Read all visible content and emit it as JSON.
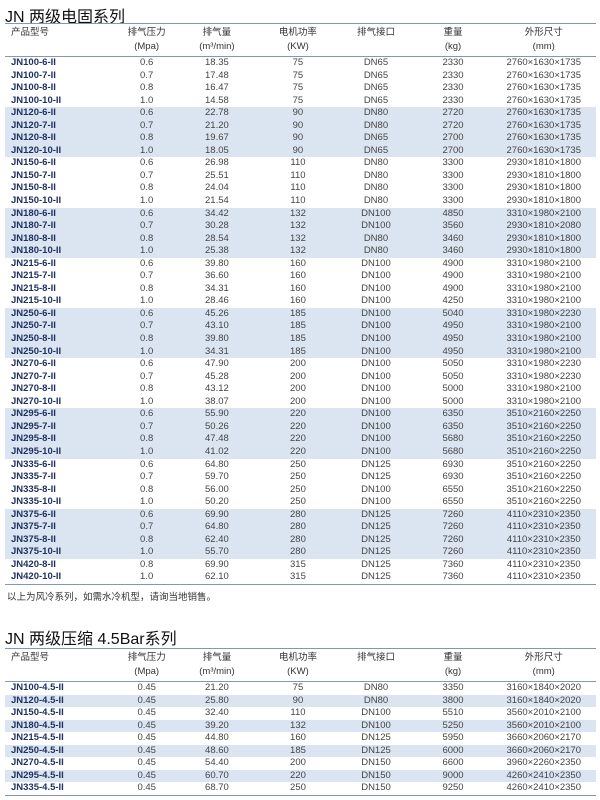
{
  "section1": {
    "title": "JN 两级电固系列",
    "headers": [
      [
        "产品型号",
        ""
      ],
      [
        "排气压力",
        "(Mpa)"
      ],
      [
        "排气量",
        "(m³/min)"
      ],
      [
        "电机功率",
        "(KW)"
      ],
      [
        "排气接口",
        ""
      ],
      [
        "重量",
        "(kg)"
      ],
      [
        "外形尺寸",
        "(mm)"
      ]
    ],
    "rows": [
      [
        "JN100-6-II",
        "0.6",
        "18.35",
        "75",
        "DN65",
        "2330",
        "2760×1630×1735"
      ],
      [
        "JN100-7-II",
        "0.7",
        "17.48",
        "75",
        "DN65",
        "2330",
        "2760×1630×1735"
      ],
      [
        "JN100-8-II",
        "0.8",
        "16.47",
        "75",
        "DN65",
        "2330",
        "2760×1630×1735"
      ],
      [
        "JN100-10-II",
        "1.0",
        "14.58",
        "75",
        "DN65",
        "2330",
        "2760×1630×1735"
      ],
      [
        "JN120-6-II",
        "0.6",
        "22.78",
        "90",
        "DN80",
        "2720",
        "2760×1630×1735"
      ],
      [
        "JN120-7-II",
        "0.7",
        "21.20",
        "90",
        "DN80",
        "2720",
        "2760×1630×1735"
      ],
      [
        "JN120-8-II",
        "0.8",
        "19.67",
        "90",
        "DN65",
        "2700",
        "2760×1630×1735"
      ],
      [
        "JN120-10-II",
        "1.0",
        "18.05",
        "90",
        "DN65",
        "2700",
        "2760×1630×1735"
      ],
      [
        "JN150-6-II",
        "0.6",
        "26.98",
        "110",
        "DN80",
        "3300",
        "2930×1810×1800"
      ],
      [
        "JN150-7-II",
        "0.7",
        "25.51",
        "110",
        "DN80",
        "3300",
        "2930×1810×1800"
      ],
      [
        "JN150-8-II",
        "0.8",
        "24.04",
        "110",
        "DN80",
        "3300",
        "2930×1810×1800"
      ],
      [
        "JN150-10-II",
        "1.0",
        "21.54",
        "110",
        "DN80",
        "3300",
        "2930×1810×1800"
      ],
      [
        "JN180-6-II",
        "0.6",
        "34.42",
        "132",
        "DN100",
        "4850",
        "3310×1980×2100"
      ],
      [
        "JN180-7-II",
        "0.7",
        "30.28",
        "132",
        "DN100",
        "3560",
        "2930×1810×2080"
      ],
      [
        "JN180-8-II",
        "0.8",
        "28.54",
        "132",
        "DN80",
        "3460",
        "2930×1810×1800"
      ],
      [
        "JN180-10-II",
        "1.0",
        "25.38",
        "132",
        "DN80",
        "3460",
        "2930×1810×1800"
      ],
      [
        "JN215-6-II",
        "0.6",
        "39.80",
        "160",
        "DN100",
        "4900",
        "3310×1980×2100"
      ],
      [
        "JN215-7-II",
        "0.7",
        "36.60",
        "160",
        "DN100",
        "4900",
        "3310×1980×2100"
      ],
      [
        "JN215-8-II",
        "0.8",
        "34.31",
        "160",
        "DN100",
        "4900",
        "3310×1980×2100"
      ],
      [
        "JN215-10-II",
        "1.0",
        "28.46",
        "160",
        "DN100",
        "4250",
        "3310×1980×2100"
      ],
      [
        "JN250-6-II",
        "0.6",
        "45.26",
        "185",
        "DN100",
        "5040",
        "3310×1980×2230"
      ],
      [
        "JN250-7-II",
        "0.7",
        "43.10",
        "185",
        "DN100",
        "4950",
        "3310×1980×2100"
      ],
      [
        "JN250-8-II",
        "0.8",
        "39.80",
        "185",
        "DN100",
        "4950",
        "3310×1980×2100"
      ],
      [
        "JN250-10-II",
        "1.0",
        "34.31",
        "185",
        "DN100",
        "4950",
        "3310×1980×2100"
      ],
      [
        "JN270-6-II",
        "0.6",
        "47.90",
        "200",
        "DN100",
        "5050",
        "3310×1980×2230"
      ],
      [
        "JN270-7-II",
        "0.7",
        "45.28",
        "200",
        "DN100",
        "5050",
        "3310×1980×2230"
      ],
      [
        "JN270-8-II",
        "0.8",
        "43.12",
        "200",
        "DN100",
        "5000",
        "3310×1980×2100"
      ],
      [
        "JN270-10-II",
        "1.0",
        "38.07",
        "200",
        "DN100",
        "5000",
        "3310×1980×2100"
      ],
      [
        "JN295-6-II",
        "0.6",
        "55.90",
        "220",
        "DN100",
        "6350",
        "3510×2160×2250"
      ],
      [
        "JN295-7-II",
        "0.7",
        "50.26",
        "220",
        "DN100",
        "6350",
        "3510×2160×2250"
      ],
      [
        "JN295-8-II",
        "0.8",
        "47.48",
        "220",
        "DN100",
        "5680",
        "3510×2160×2250"
      ],
      [
        "JN295-10-II",
        "1.0",
        "41.02",
        "220",
        "DN100",
        "5680",
        "3510×2160×2250"
      ],
      [
        "JN335-6-II",
        "0.6",
        "64.80",
        "250",
        "DN125",
        "6930",
        "3510×2160×2250"
      ],
      [
        "JN335-7-II",
        "0.7",
        "59.70",
        "250",
        "DN125",
        "6930",
        "3510×2160×2250"
      ],
      [
        "JN335-8-II",
        "0.8",
        "56.00",
        "250",
        "DN100",
        "6550",
        "3510×2160×2250"
      ],
      [
        "JN335-10-II",
        "1.0",
        "50.20",
        "250",
        "DN100",
        "6550",
        "3510×2160×2250"
      ],
      [
        "JN375-6-II",
        "0.6",
        "69.90",
        "280",
        "DN125",
        "7260",
        "4110×2310×2350"
      ],
      [
        "JN375-7-II",
        "0.7",
        "64.80",
        "280",
        "DN125",
        "7260",
        "4110×2310×2350"
      ],
      [
        "JN375-8-II",
        "0.8",
        "62.40",
        "280",
        "DN125",
        "7260",
        "4110×2310×2350"
      ],
      [
        "JN375-10-II",
        "1.0",
        "55.70",
        "280",
        "DN125",
        "7260",
        "4110×2310×2350"
      ],
      [
        "JN420-8-II",
        "0.8",
        "69.90",
        "315",
        "DN125",
        "7360",
        "4110×2310×2350"
      ],
      [
        "JN420-10-II",
        "1.0",
        "62.10",
        "315",
        "DN125",
        "7360",
        "4110×2310×2350"
      ]
    ],
    "note": "以上为风冷系列，如需水冷机型，请询当地销售。"
  },
  "section2": {
    "title": "JN 两级压缩 4.5Bar系列",
    "headers": [
      [
        "产品型号",
        ""
      ],
      [
        "排气压力",
        "(Mpa)"
      ],
      [
        "排气量",
        "(m³/min)"
      ],
      [
        "电机功率",
        "(KW)"
      ],
      [
        "排气接口",
        ""
      ],
      [
        "重量",
        "(kg)"
      ],
      [
        "外形尺寸",
        "(mm)"
      ]
    ],
    "rows": [
      [
        "JN100-4.5-II",
        "0.45",
        "21.20",
        "75",
        "DN80",
        "3350",
        "3160×1840×2020"
      ],
      [
        "JN120-4.5-II",
        "0.45",
        "25.80",
        "90",
        "DN80",
        "3800",
        "3160×1840×2020"
      ],
      [
        "JN150-4.5-II",
        "0.45",
        "32.40",
        "110",
        "DN100",
        "5510",
        "3560×2010×2100"
      ],
      [
        "JN180-4.5-II",
        "0.45",
        "39.20",
        "132",
        "DN100",
        "5250",
        "3560×2010×2100"
      ],
      [
        "JN215-4.5-II",
        "0.45",
        "44.80",
        "160",
        "DN125",
        "5950",
        "3660×2060×2170"
      ],
      [
        "JN250-4.5-II",
        "0.45",
        "48.60",
        "185",
        "DN125",
        "6000",
        "3660×2060×2170"
      ],
      [
        "JN270-4.5-II",
        "0.45",
        "54.40",
        "200",
        "DN150",
        "6600",
        "3960×2260×2350"
      ],
      [
        "JN295-4.5-II",
        "0.45",
        "60.70",
        "220",
        "DN150",
        "9000",
        "4260×2410×2350"
      ],
      [
        "JN335-4.5-II",
        "0.45",
        "68.70",
        "250",
        "DN150",
        "9250",
        "4260×2410×2350"
      ]
    ]
  },
  "colors": {
    "model_text": "#1f3160",
    "stripe": "#dbe5f1",
    "rule": "#8496b6"
  }
}
